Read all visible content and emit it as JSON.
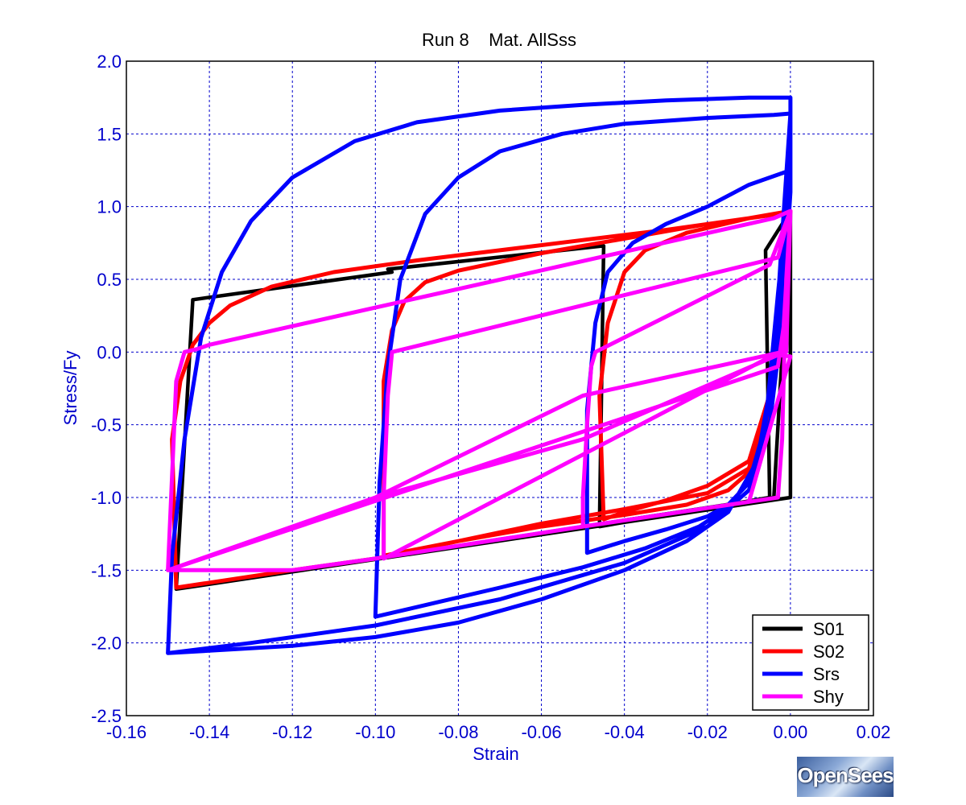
{
  "chart_data": {
    "type": "line",
    "title": "Run 8    Mat. AllSss",
    "xlabel": "Strain",
    "ylabel": "Stress/Fy",
    "xlim": [
      -0.16,
      0.02
    ],
    "ylim": [
      -2.5,
      2.0
    ],
    "xticks": [
      "-0.16",
      "-0.14",
      "-0.12",
      "-0.10",
      "-0.08",
      "-0.06",
      "-0.04",
      "-0.02",
      "0.00",
      "0.02"
    ],
    "yticks": [
      "2.0",
      "1.5",
      "1.0",
      "0.5",
      "0.0",
      "-0.5",
      "-1.0",
      "-1.5",
      "-2.0",
      "-2.5"
    ],
    "xtick_values": [
      -0.16,
      -0.14,
      -0.12,
      -0.1,
      -0.08,
      -0.06,
      -0.04,
      -0.02,
      0.0,
      0.02
    ],
    "ytick_values": [
      2.0,
      1.5,
      1.0,
      0.5,
      0.0,
      -0.5,
      -1.0,
      -1.5,
      -2.0,
      -2.5
    ],
    "grid": true,
    "legend_position": "bottom-right",
    "series": [
      {
        "name": "S01",
        "color": "#000000",
        "x": [
          0.0,
          -0.006,
          -0.005,
          -0.046,
          -0.045,
          -0.097,
          -0.096,
          -0.144,
          -0.148,
          0.0,
          0.0,
          -0.004,
          -0.05,
          -0.1,
          -0.148
        ],
        "y": [
          0.97,
          0.7,
          -1.0,
          -1.2,
          0.73,
          0.57,
          0.55,
          0.36,
          -1.63,
          -1.0,
          0.97,
          -1.0,
          -1.2,
          -1.42,
          -1.63
        ]
      },
      {
        "name": "S02",
        "color": "#ff0000",
        "x": [
          0.0,
          -0.002,
          -0.004,
          -0.01,
          -0.02,
          -0.03,
          -0.04,
          -0.045,
          -0.046,
          -0.044,
          -0.04,
          -0.035,
          -0.025,
          -0.01,
          0.0,
          -0.003,
          -0.005,
          -0.009,
          -0.015,
          -0.025,
          -0.04,
          -0.06,
          -0.08,
          -0.098,
          -0.098,
          -0.096,
          -0.093,
          -0.088,
          -0.08,
          -0.06,
          -0.04,
          -0.02,
          -0.005,
          0.0,
          -0.002,
          -0.005,
          -0.01,
          -0.02,
          -0.04,
          -0.06,
          -0.08,
          -0.1,
          -0.12,
          -0.148,
          -0.149,
          -0.147,
          -0.144,
          -0.14,
          -0.135,
          -0.125,
          -0.11,
          -0.09,
          -0.07,
          -0.05,
          -0.03,
          -0.01,
          0.0
        ],
        "y": [
          0.97,
          0.5,
          -0.2,
          -0.75,
          -0.92,
          -1.02,
          -1.1,
          -1.15,
          -0.3,
          0.2,
          0.55,
          0.7,
          0.82,
          0.92,
          0.97,
          0.3,
          -0.4,
          -0.8,
          -0.95,
          -1.05,
          -1.12,
          -1.2,
          -1.3,
          -1.4,
          -0.2,
          0.15,
          0.35,
          0.48,
          0.56,
          0.68,
          0.78,
          0.88,
          0.94,
          0.97,
          0.4,
          -0.3,
          -0.8,
          -0.97,
          -1.08,
          -1.18,
          -1.3,
          -1.42,
          -1.5,
          -1.62,
          -0.6,
          -0.2,
          0.05,
          0.2,
          0.32,
          0.45,
          0.55,
          0.63,
          0.7,
          0.77,
          0.84,
          0.92,
          0.97
        ]
      },
      {
        "name": "Srs",
        "color": "#0000ff",
        "x": [
          0.0,
          -0.003,
          -0.006,
          -0.01,
          -0.015,
          -0.02,
          -0.03,
          -0.04,
          -0.049,
          -0.049,
          -0.047,
          -0.044,
          -0.038,
          -0.03,
          -0.02,
          -0.01,
          0.0,
          -0.002,
          -0.004,
          -0.008,
          -0.014,
          -0.022,
          -0.035,
          -0.05,
          -0.07,
          -0.085,
          -0.1,
          -0.099,
          -0.097,
          -0.094,
          -0.088,
          -0.08,
          -0.07,
          -0.055,
          -0.04,
          -0.02,
          -0.004,
          0.0,
          -0.002,
          -0.004,
          -0.008,
          -0.015,
          -0.025,
          -0.04,
          -0.06,
          -0.08,
          -0.1,
          -0.12,
          -0.15,
          -0.149,
          -0.146,
          -0.142,
          -0.137,
          -0.13,
          -0.12,
          -0.105,
          -0.09,
          -0.07,
          -0.05,
          -0.03,
          -0.01,
          0.0,
          0.0,
          -0.002,
          -0.005,
          -0.01,
          -0.02,
          -0.04,
          -0.07,
          -0.1,
          -0.13,
          -0.15
        ],
        "y": [
          1.25,
          0.4,
          -0.5,
          -0.9,
          -1.05,
          -1.13,
          -1.22,
          -1.3,
          -1.38,
          -0.4,
          0.2,
          0.55,
          0.75,
          0.88,
          1.0,
          1.15,
          1.25,
          0.6,
          -0.2,
          -0.75,
          -1.05,
          -1.2,
          -1.35,
          -1.48,
          -1.62,
          -1.72,
          -1.82,
          -0.9,
          -0.1,
          0.5,
          0.95,
          1.2,
          1.38,
          1.5,
          1.57,
          1.61,
          1.63,
          1.64,
          0.8,
          -0.1,
          -0.75,
          -1.1,
          -1.3,
          -1.5,
          -1.7,
          -1.86,
          -1.96,
          -2.02,
          -2.07,
          -1.4,
          -0.6,
          0.1,
          0.55,
          0.9,
          1.2,
          1.45,
          1.58,
          1.66,
          1.7,
          1.73,
          1.75,
          1.75,
          1.1,
          0.2,
          -0.5,
          -0.95,
          -1.2,
          -1.45,
          -1.7,
          -1.88,
          -2.0,
          -2.07
        ]
      },
      {
        "name": "Shy",
        "color": "#ff00ff",
        "x": [
          0.0,
          -0.001,
          -0.002,
          -0.003,
          -0.05,
          -0.05,
          -0.049,
          -0.048,
          -0.047,
          -0.005,
          0.0,
          -0.001,
          -0.004,
          -0.098,
          -0.098,
          -0.097,
          -0.096,
          -0.003,
          0.0,
          -0.001,
          -0.003,
          -0.15,
          -0.148,
          -0.146,
          -0.143,
          -0.14,
          -0.004,
          0.0,
          -0.002,
          -0.05,
          -0.1,
          -0.15,
          -0.15,
          -0.12,
          -0.1,
          -0.05,
          -0.01,
          0.0,
          -0.003,
          -0.05,
          -0.1,
          -0.15
        ],
        "y": [
          0.97,
          0.5,
          -0.6,
          -1.0,
          -1.2,
          -1.0,
          -0.5,
          -0.1,
          0.0,
          0.6,
          0.97,
          0.0,
          -0.02,
          -1.42,
          -1.0,
          -0.3,
          0.0,
          0.65,
          0.97,
          0.3,
          -0.1,
          -1.5,
          -0.2,
          0.0,
          0.02,
          0.05,
          0.92,
          0.97,
          0.0,
          -0.3,
          -1.0,
          -1.5,
          -1.5,
          -1.5,
          -1.42,
          -1.2,
          -1.03,
          -0.03,
          -0.02,
          -0.6,
          -1.0,
          -1.5
        ]
      }
    ]
  },
  "logo": {
    "text": "OpenSees"
  }
}
